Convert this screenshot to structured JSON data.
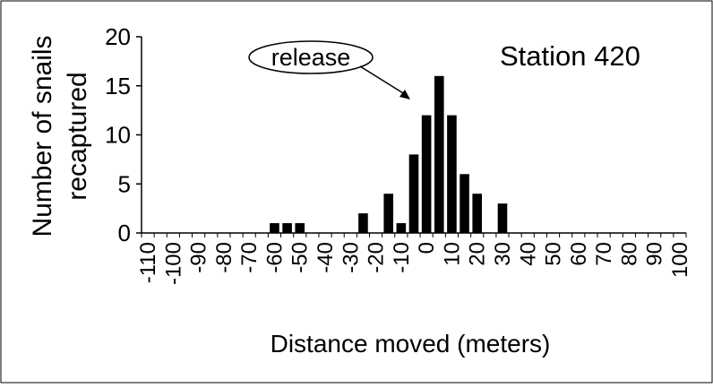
{
  "chart_data": {
    "type": "bar",
    "title": "Station 420",
    "xlabel": "Distance moved (meters)",
    "ylabel_lines": [
      "Number of snails",
      "recaptured"
    ],
    "annotation": "release",
    "ylim": [
      0,
      20
    ],
    "yticks": [
      0,
      5,
      10,
      15,
      20
    ],
    "x_tick_labels": [
      "-110",
      "-100",
      "-90",
      "-80",
      "-70",
      "-60",
      "-50",
      "-40",
      "-30",
      "-20",
      "-10",
      "0",
      "10",
      "20",
      "30",
      "40",
      "50",
      "60",
      "70",
      "80",
      "90",
      "100"
    ],
    "bins": [
      -110,
      -105,
      -100,
      -95,
      -90,
      -85,
      -80,
      -75,
      -70,
      -65,
      -60,
      -55,
      -50,
      -45,
      -40,
      -35,
      -30,
      -25,
      -20,
      -15,
      -10,
      -5,
      0,
      5,
      10,
      15,
      20,
      25,
      30,
      35,
      40,
      45,
      50,
      55,
      60,
      65,
      70,
      75,
      80,
      85,
      90,
      95,
      100
    ],
    "values": [
      0,
      0,
      0,
      0,
      0,
      0,
      0,
      0,
      0,
      0,
      1,
      1,
      1,
      0,
      0,
      0,
      0,
      2,
      0,
      4,
      1,
      8,
      12,
      16,
      12,
      6,
      4,
      0,
      3,
      0,
      0,
      0,
      0,
      0,
      0,
      0,
      0,
      0,
      0,
      0,
      0,
      0,
      0
    ]
  }
}
